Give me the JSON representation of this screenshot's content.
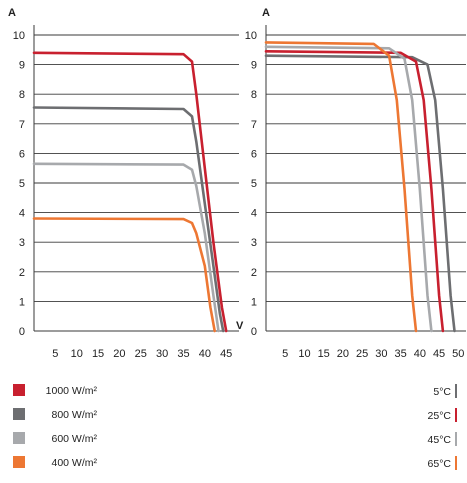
{
  "chart_data": [
    {
      "type": "line",
      "ylabel": "A",
      "xlabel": "V",
      "xlim": [
        0,
        48
      ],
      "ylim": [
        0,
        10
      ],
      "x_ticks": [
        "5",
        "10",
        "15",
        "20",
        "25",
        "30",
        "35",
        "40",
        "45"
      ],
      "y_ticks": [
        "0",
        "1",
        "2",
        "3",
        "4",
        "5",
        "6",
        "7",
        "8",
        "9",
        "10"
      ],
      "grid": "horizontal",
      "series": [
        {
          "name": "1000 W/m²",
          "color": "#c8202f",
          "x": [
            0,
            35,
            37,
            38,
            40,
            42,
            44,
            45
          ],
          "y": [
            9.4,
            9.35,
            9.1,
            8.0,
            5.5,
            3.0,
            0.8,
            0
          ]
        },
        {
          "name": "800 W/m²",
          "color": "#6d6e71",
          "x": [
            0,
            35,
            37,
            38,
            40,
            42,
            43.5,
            44.3
          ],
          "y": [
            7.55,
            7.5,
            7.25,
            6.4,
            4.3,
            2.2,
            0.6,
            0
          ]
        },
        {
          "name": "600 W/m²",
          "color": "#a7a9ac",
          "x": [
            0,
            35,
            37,
            38,
            40,
            42,
            43.2
          ],
          "y": [
            5.65,
            5.62,
            5.45,
            4.9,
            3.3,
            1.2,
            0
          ]
        },
        {
          "name": "400 W/m²",
          "color": "#ed7733",
          "x": [
            0,
            35,
            37,
            38,
            40,
            41.3,
            42.3
          ],
          "y": [
            3.8,
            3.78,
            3.65,
            3.3,
            2.2,
            0.8,
            0
          ]
        }
      ]
    },
    {
      "type": "line",
      "ylabel": "A",
      "xlim": [
        0,
        52
      ],
      "ylim": [
        0,
        10
      ],
      "x_ticks": [
        "5",
        "10",
        "15",
        "20",
        "25",
        "30",
        "35",
        "40",
        "45",
        "50"
      ],
      "y_ticks": [
        "0",
        "1",
        "2",
        "3",
        "4",
        "5",
        "6",
        "7",
        "8",
        "9",
        "10"
      ],
      "grid": "horizontal",
      "series": [
        {
          "name": "5°C",
          "color": "#6d6e71",
          "x": [
            0,
            38,
            42,
            44,
            46,
            48,
            49
          ],
          "y": [
            9.3,
            9.25,
            9.0,
            7.8,
            4.8,
            1.2,
            0
          ]
        },
        {
          "name": "25°C",
          "color": "#c8202f",
          "x": [
            0,
            35,
            39,
            41,
            43,
            45,
            46
          ],
          "y": [
            9.45,
            9.4,
            9.1,
            7.8,
            4.8,
            1.2,
            0
          ]
        },
        {
          "name": "45°C",
          "color": "#a7a9ac",
          "x": [
            0,
            32,
            36,
            38,
            40,
            42,
            43
          ],
          "y": [
            9.6,
            9.55,
            9.2,
            7.8,
            4.8,
            1.2,
            0
          ]
        },
        {
          "name": "65°C",
          "color": "#ed7733",
          "x": [
            0,
            28,
            32,
            34,
            36,
            38,
            39
          ],
          "y": [
            9.75,
            9.7,
            9.3,
            7.8,
            4.8,
            1.2,
            0
          ]
        }
      ]
    }
  ],
  "legend_left": [
    {
      "label": "1000 W/m²",
      "color": "#c8202f"
    },
    {
      "label": "800 W/m²",
      "color": "#6d6e71"
    },
    {
      "label": "600 W/m²",
      "color": "#a7a9ac"
    },
    {
      "label": "400 W/m²",
      "color": "#ed7733"
    }
  ],
  "legend_right": [
    {
      "label": "5°C",
      "color": "#6d6e71"
    },
    {
      "label": "25°C",
      "color": "#c8202f"
    },
    {
      "label": "45°C",
      "color": "#a7a9ac"
    },
    {
      "label": "65°C",
      "color": "#ed7733"
    }
  ]
}
